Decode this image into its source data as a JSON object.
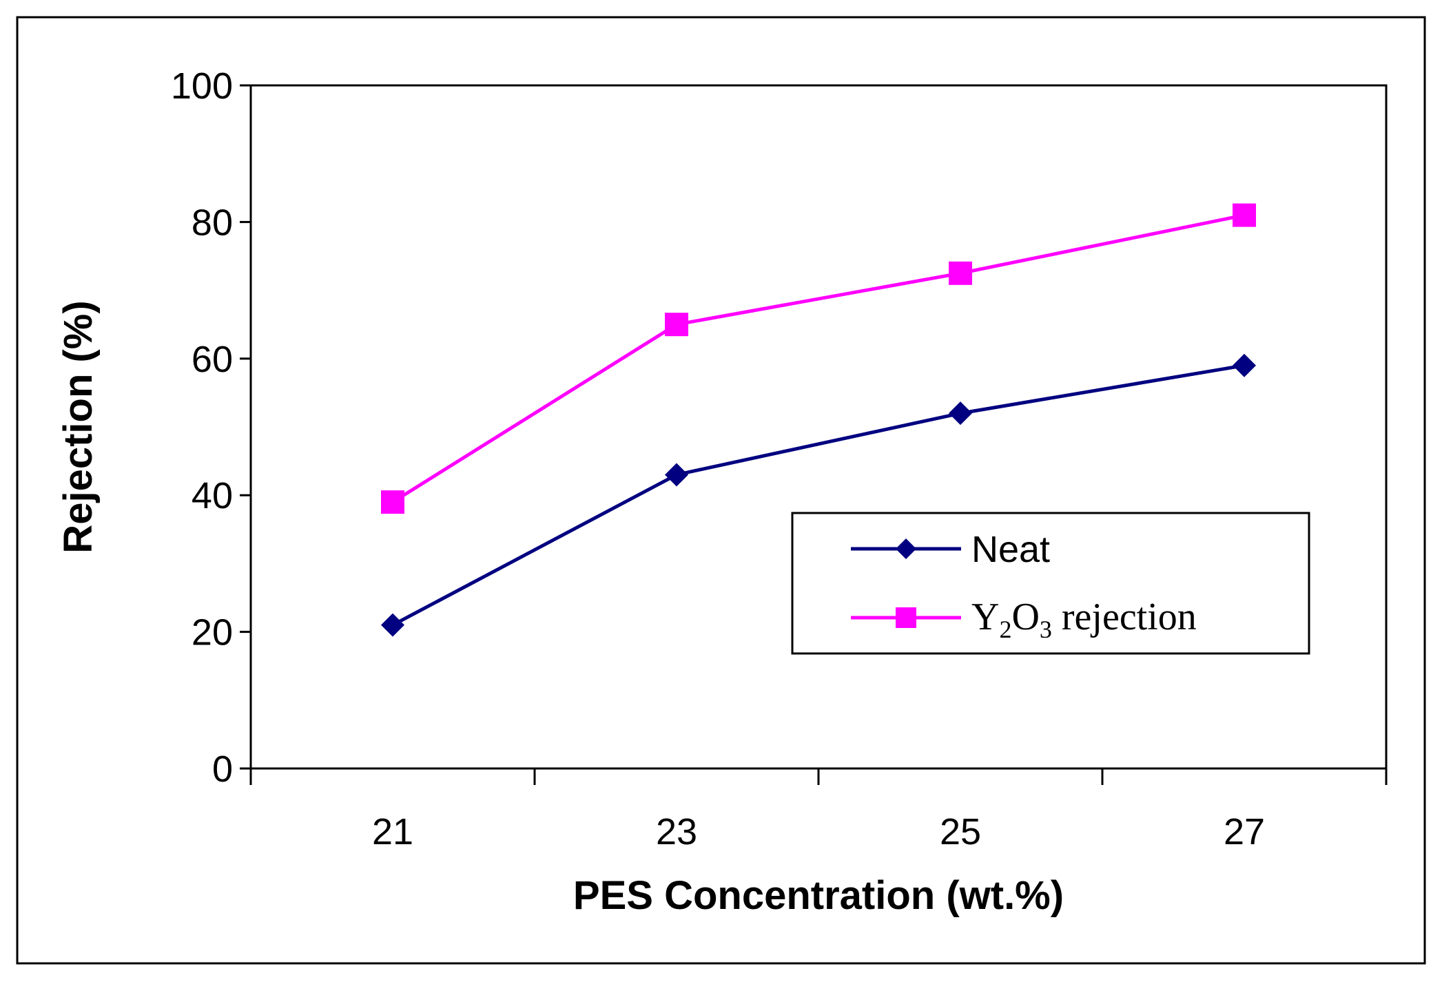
{
  "colors": {
    "neat": "#000080",
    "y2o3": "#ff00ff",
    "axis": "#000000",
    "background": "#ffffff"
  },
  "chart_data": {
    "type": "line",
    "title": "",
    "xlabel": "PES Concentration (wt.%)",
    "ylabel": "Rejection (%)",
    "categories": [
      "21",
      "23",
      "25",
      "27"
    ],
    "xlim": [
      20,
      28
    ],
    "ylim": [
      0,
      100
    ],
    "yticks": [
      0,
      20,
      40,
      60,
      80,
      100
    ],
    "grid": false,
    "legend_position": "right",
    "series": [
      {
        "name": "Neat",
        "marker": "diamond",
        "color": "#000080",
        "x": [
          21,
          23,
          25,
          27
        ],
        "values": [
          21,
          43,
          52,
          59
        ]
      },
      {
        "name": "Y2O3 rejection",
        "name_parts": {
          "base1": "Y",
          "sub1": "2",
          "base2": "O",
          "sub2": "3",
          "rest": " rejection"
        },
        "marker": "square",
        "color": "#ff00ff",
        "x": [
          21,
          23,
          25,
          27
        ],
        "values": [
          39,
          65,
          72.5,
          81
        ]
      }
    ]
  }
}
